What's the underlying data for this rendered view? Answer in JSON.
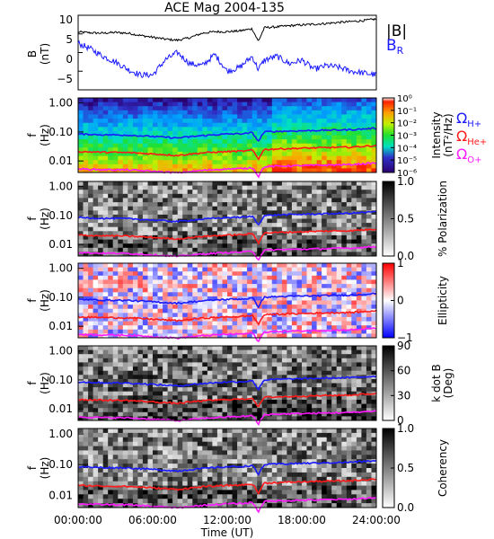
{
  "title": "ACE Mag 2004-135",
  "xaxis": {
    "label": "Time (UT)",
    "ticks": [
      "00:00:00",
      "06:00:00",
      "12:00:00",
      "18:00:00",
      "24:00:00"
    ],
    "range_hours": [
      0,
      24
    ]
  },
  "colors": {
    "B_total": "#000000",
    "B_R": "#1a1aff",
    "H_plus": "#1a1aff",
    "He_plus": "#ff1a1a",
    "O_plus": "#ff1aff"
  },
  "panel_labels": {
    "b": {
      "ylabel1": "B",
      "ylabel2": "(nT)",
      "legend_total": "|B|",
      "legend_r": "B",
      "legend_r_sub": "R"
    },
    "f": {
      "ylabel1": "f",
      "ylabel2": "(Hz)"
    },
    "gyro": {
      "omega": "Ω",
      "h": "H+",
      "he": "He+",
      "o": "O+"
    }
  },
  "colorbars": {
    "intensity": {
      "title1": "Intensity",
      "title2": "(nT²/Hz)",
      "ticks": [
        "10⁰",
        "10⁻¹",
        "10⁻²",
        "10⁻³",
        "10⁻⁴",
        "10⁻⁵",
        "10⁻⁶"
      ]
    },
    "polarization": {
      "title": "% Polarization",
      "ticks": [
        "1.0",
        "0.5",
        "0.0"
      ]
    },
    "ellipticity": {
      "title": "Ellipticity",
      "ticks": [
        "1",
        "0",
        "−1"
      ]
    },
    "kdotb": {
      "title1": "k dot B",
      "title2": "(Deg)",
      "ticks": [
        "90",
        "60",
        "30",
        "0"
      ]
    },
    "coherency": {
      "title": "Coherency",
      "ticks": [
        "1.0",
        "0.5",
        "0.0"
      ]
    }
  },
  "chart_data": [
    {
      "type": "line",
      "ylabel": "B (nT)",
      "ylim": [
        -10,
        10
      ],
      "yticks": [
        "10",
        "5",
        "0",
        "−5"
      ],
      "x_hours": [
        0,
        1,
        2,
        3,
        4,
        5,
        6,
        7,
        8,
        9,
        10,
        11,
        12,
        13,
        14,
        14.5,
        15,
        16,
        17,
        18,
        19,
        20,
        21,
        22,
        23,
        24
      ],
      "series": [
        {
          "name": "|B|",
          "values": [
            5.5,
            5.3,
            5.2,
            5.4,
            5.2,
            4.6,
            4.1,
            3.6,
            3.3,
            4.0,
            5.2,
            5.6,
            5.6,
            5.8,
            6.4,
            3.0,
            6.7,
            6.9,
            7.2,
            7.4,
            7.6,
            7.8,
            8.1,
            8.3,
            8.6,
            9.0
          ]
        },
        {
          "name": "B_R",
          "values": [
            2.5,
            1.0,
            -1.0,
            -2.5,
            -4.5,
            -6.0,
            -6.0,
            -2.0,
            0.0,
            -3.0,
            -3.5,
            -0.5,
            -5.0,
            -4.0,
            -1.0,
            -4.5,
            -2.0,
            -1.0,
            -3.0,
            -2.0,
            -4.5,
            -3.5,
            -4.0,
            -5.0,
            -5.5,
            -6.0
          ]
        }
      ]
    },
    {
      "type": "heatmap",
      "name": "Intensity",
      "ylabel": "f (Hz)",
      "yscale": "log",
      "ylim": [
        0.004,
        1.5
      ],
      "yticks": [
        "1.00",
        "0.10",
        "0.01"
      ],
      "colormap": "rainbow",
      "zscale": "log",
      "zlim": [
        1e-06,
        1
      ]
    },
    {
      "type": "heatmap",
      "name": "% Polarization",
      "ylabel": "f (Hz)",
      "yscale": "log",
      "ylim": [
        0.004,
        1.5
      ],
      "yticks": [
        "1.00",
        "0.10",
        "0.01"
      ],
      "colormap": "gray_reversed",
      "zlim": [
        0,
        1
      ]
    },
    {
      "type": "heatmap",
      "name": "Ellipticity",
      "ylabel": "f (Hz)",
      "yscale": "log",
      "ylim": [
        0.004,
        1.5
      ],
      "yticks": [
        "1.00",
        "0.10",
        "0.01"
      ],
      "colormap": "blue_white_red",
      "zlim": [
        -1,
        1
      ]
    },
    {
      "type": "heatmap",
      "name": "k dot B (Deg)",
      "ylabel": "f (Hz)",
      "yscale": "log",
      "ylim": [
        0.004,
        1.5
      ],
      "yticks": [
        "1.00",
        "0.10",
        "0.01"
      ],
      "colormap": "gray_reversed",
      "zlim": [
        0,
        90
      ]
    },
    {
      "type": "heatmap",
      "name": "Coherency",
      "ylabel": "f (Hz)",
      "yscale": "log",
      "ylim": [
        0.004,
        1.5
      ],
      "yticks": [
        "1.00",
        "0.10",
        "0.01"
      ],
      "colormap": "gray_reversed",
      "zlim": [
        0,
        1
      ]
    }
  ],
  "gyrofrequency_lines": {
    "x_hours": [
      0,
      2,
      4,
      6,
      8,
      10,
      12,
      13.5,
      14,
      14.5,
      15,
      16,
      18,
      20,
      22,
      24
    ],
    "H_plus_hz": [
      0.085,
      0.08,
      0.078,
      0.07,
      0.062,
      0.075,
      0.085,
      0.088,
      0.095,
      0.045,
      0.1,
      0.105,
      0.11,
      0.115,
      0.12,
      0.135
    ],
    "He_plus_hz": [
      0.021,
      0.02,
      0.0195,
      0.0175,
      0.0155,
      0.019,
      0.021,
      0.022,
      0.024,
      0.011,
      0.025,
      0.026,
      0.0275,
      0.029,
      0.03,
      0.034
    ],
    "O_plus_hz": [
      0.0053,
      0.005,
      0.0049,
      0.0044,
      0.0039,
      0.0047,
      0.0053,
      0.0055,
      0.006,
      0.0028,
      0.0063,
      0.0066,
      0.0069,
      0.0072,
      0.0075,
      0.0085
    ]
  }
}
